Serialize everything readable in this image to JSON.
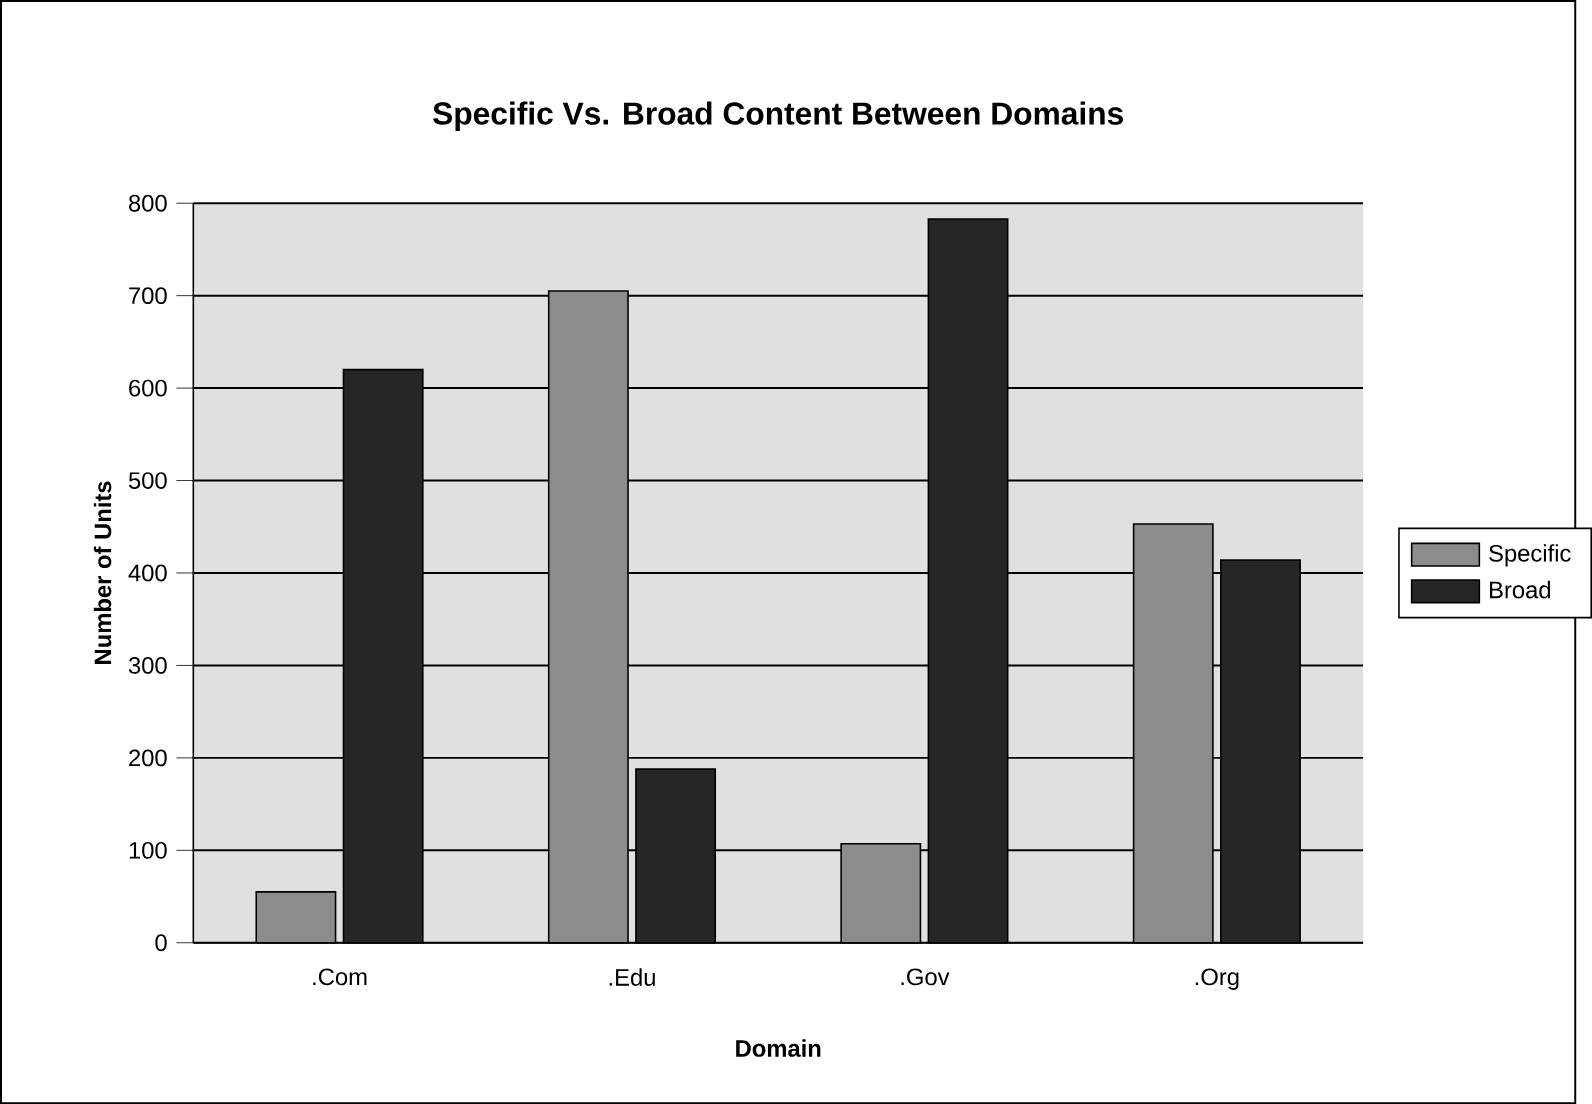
{
  "chart_data": {
    "type": "bar",
    "title": "Specific Vs. Broad Content Between Domains",
    "xlabel": "Domain",
    "ylabel": "Number of Units",
    "categories": [
      ".Com",
      ".Edu",
      ".Gov",
      ".Org"
    ],
    "series": [
      {
        "name": "Specific",
        "color": "#8c8c8c",
        "values": [
          55,
          705,
          107,
          453
        ]
      },
      {
        "name": "Broad",
        "color": "#262626",
        "values": [
          620,
          188,
          783,
          414
        ]
      }
    ],
    "ylim": [
      0,
      800
    ],
    "yticks": [
      0,
      100,
      200,
      300,
      400,
      500,
      600,
      700,
      800
    ],
    "grid": "y",
    "legend": "right"
  }
}
